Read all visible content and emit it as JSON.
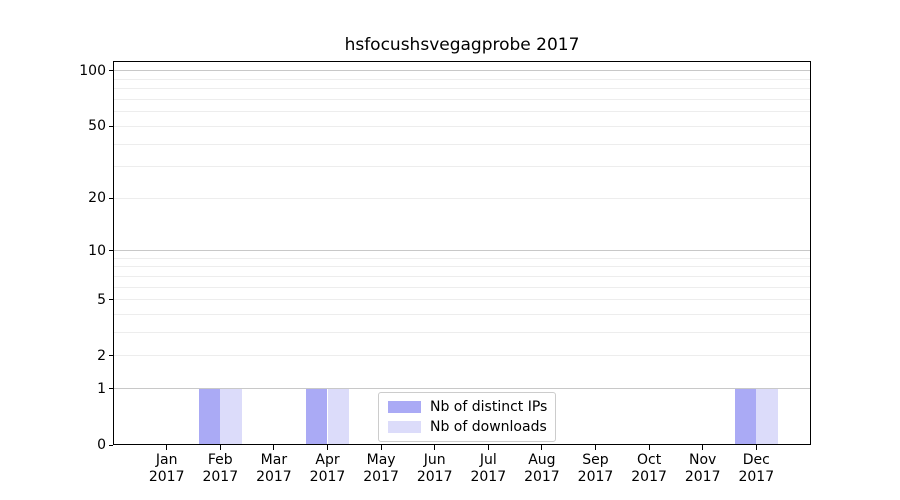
{
  "chart_data": {
    "type": "bar",
    "title": "hsfocushsvegagprobe 2017",
    "xlabel": "",
    "ylabel": "",
    "year": "2017",
    "months": [
      "Jan",
      "Feb",
      "Mar",
      "Apr",
      "May",
      "Jun",
      "Jul",
      "Aug",
      "Sep",
      "Oct",
      "Nov",
      "Dec"
    ],
    "series": [
      {
        "name": "Nb of distinct IPs",
        "color": "#aaaaf5",
        "values": [
          0,
          1,
          0,
          1,
          0,
          0,
          0,
          0,
          0,
          0,
          0,
          1
        ]
      },
      {
        "name": "Nb of downloads",
        "color": "#dcdcfa",
        "values": [
          0,
          1,
          0,
          1,
          0,
          0,
          0,
          0,
          0,
          0,
          0,
          1
        ]
      }
    ],
    "y_scale": "log1p",
    "ylim": [
      0,
      110
    ],
    "y_ticks": [
      0,
      1,
      2,
      5,
      10,
      20,
      50,
      100
    ],
    "y_major_gridlines": [
      1,
      10,
      100
    ],
    "y_minor_gridlines": [
      2,
      3,
      4,
      5,
      6,
      7,
      8,
      9,
      20,
      30,
      40,
      50,
      60,
      70,
      80,
      90
    ],
    "grid": true,
    "legend": {
      "position": "lower center"
    },
    "colors": {
      "major_grid": "#c8c8c8",
      "minor_grid": "#ededed",
      "spine": "#000000",
      "background": "#ffffff"
    }
  }
}
